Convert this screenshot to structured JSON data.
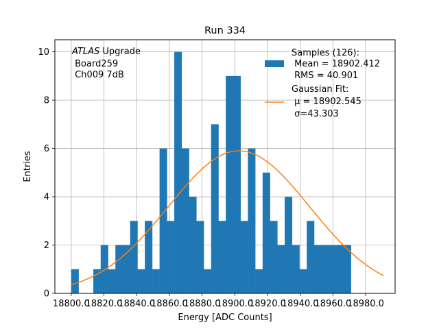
{
  "chart_data": {
    "type": "bar",
    "title": "Run 334",
    "xlabel": "Energy [ADC Counts]",
    "ylabel": "Entries",
    "xlim": [
      18790.0,
      18998.0
    ],
    "ylim": [
      0,
      10.5
    ],
    "grid": true,
    "bin_width": 4.5,
    "bin_start": 18800.0,
    "x_ticks": [
      18800.0,
      18820.0,
      18840.0,
      18860.0,
      18880.0,
      18900.0,
      18920.0,
      18940.0,
      18960.0,
      18980.0
    ],
    "x_tick_labels": [
      "18800.0",
      "18820.0",
      "18840.0",
      "18860.0",
      "18880.0",
      "18900.0",
      "18920.0",
      "18940.0",
      "18960.0",
      "18980.0"
    ],
    "y_ticks": [
      0,
      2,
      4,
      6,
      8,
      10
    ],
    "y_tick_labels": [
      "0",
      "2",
      "4",
      "6",
      "8",
      "10"
    ],
    "series": [
      {
        "name": "Samples (126):\n Mean = 18902.412\n RMS = 40.901",
        "type": "histogram",
        "color": "#1f77b4",
        "values": [
          1,
          0,
          0,
          1,
          2,
          1,
          2,
          2,
          3,
          1,
          3,
          1,
          6,
          3,
          10,
          6,
          4,
          3,
          1,
          7,
          3,
          9,
          9,
          3,
          6,
          1,
          5,
          3,
          2,
          4,
          2,
          1,
          3,
          2,
          2,
          2,
          2,
          2
        ]
      },
      {
        "name": "Gaussian Fit:\n $\\mu$ = 18902.545\n $\\sigma$=43.303",
        "type": "line",
        "color": "#ff7f0e",
        "mu": 18902.545,
        "sigma": 43.303,
        "amplitude": 5.9,
        "x_range": [
          18800.0,
          18991.0
        ]
      }
    ],
    "legend": {
      "placement": "upper-right",
      "entries": [
        {
          "lines": [
            "Samples (126):",
            " Mean = 18902.412",
            " RMS = 40.901"
          ]
        },
        {
          "lines": [
            "Gaussian Fit:",
            " μ = 18902.545",
            " σ=43.303"
          ]
        }
      ]
    },
    "annotation": {
      "line1_italic": "ATLAS",
      "line1_rest": " Upgrade",
      "line2": " Board259",
      "line3": " Ch009 7dB"
    }
  }
}
